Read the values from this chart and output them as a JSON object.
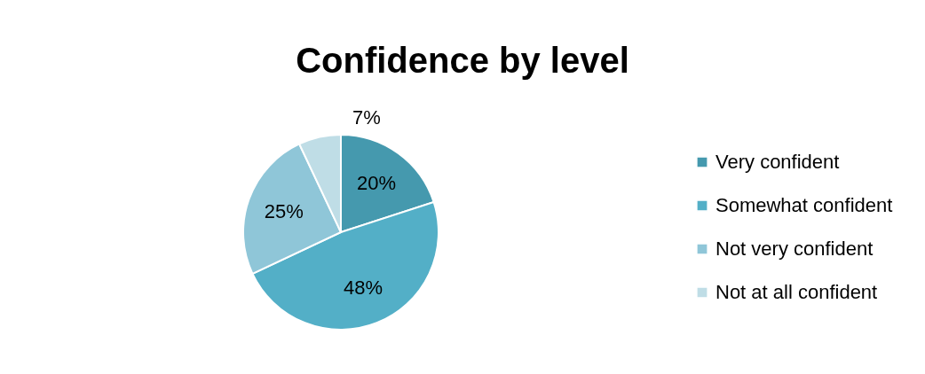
{
  "chart_data": {
    "type": "pie",
    "title": "Confidence by level",
    "categories": [
      "Very confident",
      "Somewhat confident",
      "Not very confident",
      "Not at all confident"
    ],
    "values": [
      20,
      48,
      25,
      7
    ],
    "colors": [
      "#4599ae",
      "#53afc7",
      "#8fc6d8",
      "#bfdde6"
    ],
    "value_labels": [
      "20%",
      "48%",
      "25%",
      "7%"
    ],
    "legend": "right"
  }
}
